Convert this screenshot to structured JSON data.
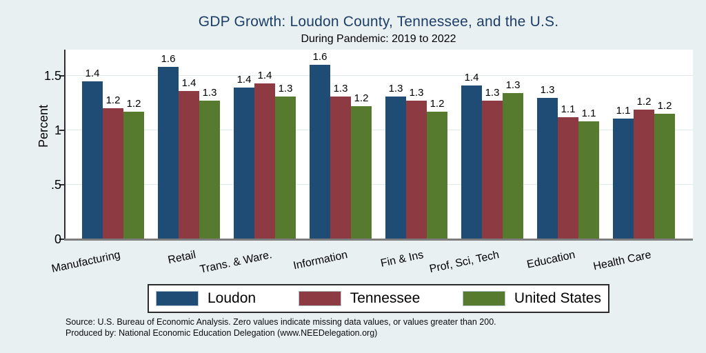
{
  "header": {
    "title": "GDP Growth: Loudon County, Tennessee, and the U.S.",
    "subtitle": "During Pandemic: 2019 to 2022"
  },
  "colors": {
    "background": "#e9f0f2",
    "title_text": "#1d3e66",
    "loudon_blue": "#1e4c74",
    "tennessee_red": "#8e3a42",
    "us_green": "#567a2e",
    "gridline": "#dfe9ec",
    "axis_line": "#2e2e2e",
    "baseline_gray": "#7d7d7d"
  },
  "chart_data": {
    "type": "bar",
    "title": "GDP Growth: Loudon County, Tennessee, and the U.S.",
    "subtitle": "During Pandemic: 2019 to 2022",
    "xlabel": "",
    "ylabel": "Percent",
    "ylim": [
      0,
      1.74
    ],
    "grid": true,
    "legend_position": "bottom",
    "categories": [
      "Manufacturing",
      "Retail",
      "Trans. & Ware.",
      "Information",
      "Fin & Ins",
      "Prof, Sci, Tech",
      "Education",
      "Health Care"
    ],
    "yticks": [
      {
        "value": 0,
        "label": "0"
      },
      {
        "value": 0.5,
        "label": ".5"
      },
      {
        "value": 1,
        "label": "1"
      },
      {
        "value": 1.5,
        "label": "1.5"
      }
    ],
    "series": [
      {
        "name": "Loudon",
        "color": "#1e4c74",
        "values": [
          1.45,
          1.58,
          1.39,
          1.6,
          1.31,
          1.41,
          1.3,
          1.11
        ],
        "labels": [
          "1.4",
          "1.6",
          "1.4",
          "1.6",
          "1.3",
          "1.4",
          "1.3",
          "1.1"
        ]
      },
      {
        "name": "Tennessee",
        "color": "#8e3a42",
        "values": [
          1.2,
          1.36,
          1.43,
          1.31,
          1.27,
          1.27,
          1.12,
          1.19
        ],
        "labels": [
          "1.2",
          "1.4",
          "1.4",
          "1.3",
          "1.3",
          "1.3",
          "1.1",
          "1.2"
        ]
      },
      {
        "name": "United States",
        "color": "#567a2e",
        "values": [
          1.17,
          1.27,
          1.31,
          1.22,
          1.17,
          1.34,
          1.08,
          1.15
        ],
        "labels": [
          "1.2",
          "1.3",
          "1.3",
          "1.2",
          "1.2",
          "1.3",
          "1.1",
          "1.2"
        ]
      }
    ]
  },
  "legend": {
    "items": [
      {
        "label": "Loudon",
        "color": "#1e4c74"
      },
      {
        "label": "Tennessee",
        "color": "#8e3a42"
      },
      {
        "label": "United States",
        "color": "#567a2e"
      }
    ]
  },
  "footer": {
    "source_line1": "Source: U.S. Bureau of Economic Analysis. Zero values indicate missing data values, or values greater than 200.",
    "source_line2": "Produced by: National Economic Education Delegation (www.NEEDelegation.org)"
  }
}
